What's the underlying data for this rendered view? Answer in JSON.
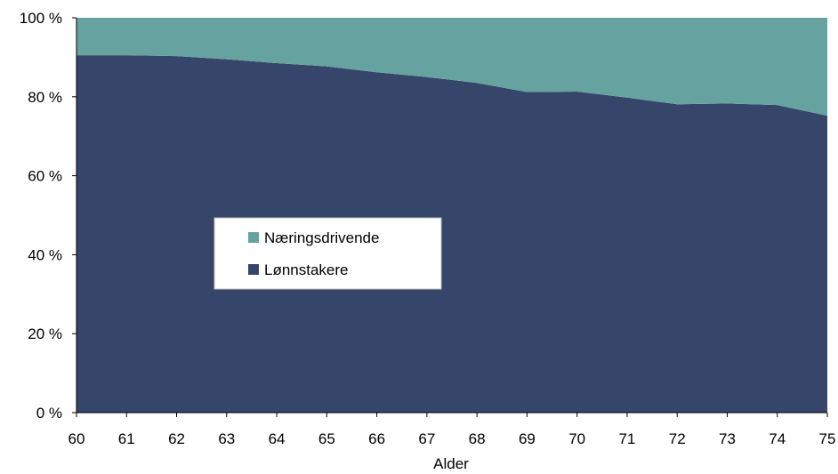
{
  "chart_data": {
    "type": "area",
    "stacked": "percent",
    "title": "",
    "xlabel": "Alder",
    "ylabel": "",
    "x": [
      60,
      61,
      62,
      63,
      64,
      65,
      66,
      67,
      68,
      69,
      70,
      71,
      72,
      73,
      74,
      75
    ],
    "ylim": [
      0,
      100
    ],
    "yticks": [
      "0 %",
      "20 %",
      "40 %",
      "60 %",
      "80 %",
      "100 %"
    ],
    "series": [
      {
        "name": "Lønnstakere",
        "color": "#36466a",
        "values": [
          90.5,
          90.5,
          90.3,
          89.5,
          88.5,
          87.7,
          86.2,
          85.0,
          83.5,
          81.2,
          81.3,
          79.8,
          78.1,
          78.3,
          77.9,
          75.2
        ]
      },
      {
        "name": "Næringsdrivende",
        "color": "#66a3a0",
        "values": [
          9.5,
          9.5,
          9.7,
          10.5,
          11.5,
          12.3,
          13.8,
          15.0,
          16.5,
          18.8,
          18.7,
          20.2,
          21.9,
          21.7,
          22.1,
          24.8
        ]
      }
    ],
    "legend": {
      "placement": "center-left",
      "entries": [
        "Næringsdrivende",
        "Lønnstakere"
      ]
    },
    "grid": false
  }
}
